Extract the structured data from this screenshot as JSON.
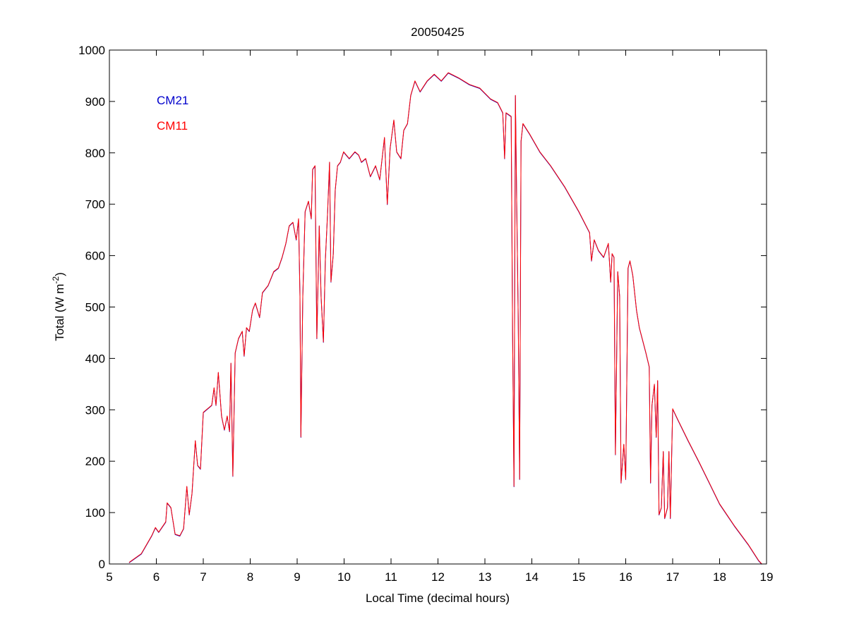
{
  "chart_data": {
    "type": "line",
    "title": "20050425",
    "xlabel": "Local Time (decimal hours)",
    "ylabel": "Total (W m",
    "ylabel_sup": "-2",
    "ylabel_end": ")",
    "xlim": [
      5,
      19
    ],
    "ylim": [
      0,
      1000
    ],
    "xticks": [
      5,
      6,
      7,
      8,
      9,
      10,
      11,
      12,
      13,
      14,
      15,
      16,
      17,
      18,
      19
    ],
    "yticks": [
      0,
      100,
      200,
      300,
      400,
      500,
      600,
      700,
      800,
      900,
      1000
    ],
    "grid": false,
    "legend_placement": "top-left",
    "x": [
      5.42,
      5.68,
      5.9,
      5.98,
      6.05,
      6.2,
      6.23,
      6.31,
      6.4,
      6.5,
      6.58,
      6.65,
      6.7,
      6.76,
      6.83,
      6.88,
      6.94,
      7.0,
      7.18,
      7.23,
      7.27,
      7.32,
      7.39,
      7.45,
      7.51,
      7.56,
      7.59,
      7.63,
      7.68,
      7.75,
      7.83,
      7.87,
      7.92,
      7.98,
      8.05,
      8.11,
      8.2,
      8.26,
      8.38,
      8.5,
      8.6,
      8.68,
      8.76,
      8.83,
      8.91,
      8.98,
      9.03,
      9.06,
      9.08,
      9.12,
      9.17,
      9.24,
      9.3,
      9.33,
      9.38,
      9.42,
      9.47,
      9.51,
      9.56,
      9.6,
      9.65,
      9.69,
      9.72,
      9.77,
      9.81,
      9.86,
      9.92,
      9.99,
      10.11,
      10.23,
      10.31,
      10.37,
      10.46,
      10.56,
      10.67,
      10.76,
      10.86,
      10.92,
      10.98,
      11.06,
      11.12,
      11.21,
      11.27,
      11.35,
      11.42,
      11.51,
      11.62,
      11.77,
      11.92,
      12.07,
      12.22,
      12.44,
      12.67,
      12.89,
      13.12,
      13.27,
      13.38,
      13.42,
      13.45,
      13.56,
      13.59,
      13.62,
      13.65,
      13.68,
      13.71,
      13.74,
      13.77,
      13.81,
      13.95,
      14.17,
      14.4,
      14.7,
      15.0,
      15.23,
      15.27,
      15.33,
      15.42,
      15.53,
      15.63,
      15.68,
      15.71,
      15.75,
      15.78,
      15.83,
      15.87,
      15.9,
      15.96,
      16.0,
      16.05,
      16.09,
      16.15,
      16.23,
      16.29,
      16.35,
      16.43,
      16.5,
      16.53,
      16.56,
      16.61,
      16.65,
      16.68,
      16.71,
      16.76,
      16.8,
      16.83,
      16.89,
      16.92,
      16.95,
      17.0,
      17.11,
      17.33,
      17.56,
      17.78,
      18.0,
      18.31,
      18.61,
      18.83,
      18.9
    ],
    "series": [
      {
        "name": "CM21",
        "color": "#0000cc",
        "values": [
          3,
          20,
          55,
          71,
          62,
          82,
          119,
          110,
          58,
          55,
          69,
          151,
          96,
          137,
          240,
          192,
          185,
          295,
          309,
          343,
          309,
          373,
          288,
          261,
          288,
          258,
          391,
          171,
          411,
          439,
          453,
          405,
          460,
          453,
          494,
          508,
          480,
          528,
          542,
          569,
          576,
          597,
          624,
          658,
          665,
          631,
          672,
          521,
          247,
          521,
          686,
          706,
          672,
          768,
          775,
          439,
          658,
          521,
          432,
          590,
          686,
          782,
          549,
          604,
          727,
          775,
          782,
          802,
          789,
          802,
          796,
          782,
          789,
          754,
          775,
          748,
          830,
          700,
          809,
          864,
          802,
          789,
          844,
          857,
          912,
          940,
          919,
          940,
          953,
          940,
          956,
          946,
          933,
          926,
          905,
          898,
          878,
          789,
          878,
          871,
          453,
          151,
          912,
          686,
          480,
          165,
          823,
          857,
          837,
          802,
          775,
          734,
          686,
          645,
          590,
          631,
          610,
          597,
          624,
          549,
          604,
          597,
          213,
          569,
          521,
          158,
          233,
          165,
          576,
          590,
          562,
          494,
          460,
          439,
          411,
          384,
          158,
          309,
          350,
          247,
          357,
          96,
          110,
          219,
          89,
          110,
          219,
          89,
          302,
          281,
          240,
          199,
          158,
          117,
          75,
          38,
          7,
          0
        ]
      },
      {
        "name": "CM11",
        "color": "#ff0000",
        "values": [
          3,
          20,
          55,
          71,
          62,
          82,
          119,
          110,
          58,
          55,
          69,
          151,
          96,
          137,
          240,
          192,
          185,
          295,
          309,
          343,
          309,
          373,
          288,
          261,
          288,
          258,
          391,
          171,
          411,
          439,
          453,
          405,
          460,
          453,
          494,
          508,
          480,
          528,
          542,
          569,
          576,
          597,
          624,
          658,
          665,
          631,
          672,
          521,
          247,
          521,
          686,
          706,
          672,
          768,
          775,
          439,
          658,
          521,
          432,
          590,
          686,
          782,
          549,
          604,
          727,
          775,
          782,
          802,
          789,
          802,
          796,
          782,
          789,
          754,
          775,
          748,
          830,
          700,
          809,
          864,
          802,
          789,
          844,
          857,
          912,
          940,
          919,
          940,
          953,
          940,
          956,
          946,
          933,
          926,
          905,
          898,
          878,
          789,
          878,
          871,
          453,
          151,
          912,
          686,
          480,
          165,
          823,
          857,
          837,
          802,
          775,
          734,
          686,
          645,
          590,
          631,
          610,
          597,
          624,
          549,
          604,
          597,
          213,
          569,
          521,
          158,
          233,
          165,
          576,
          590,
          562,
          494,
          460,
          439,
          411,
          384,
          158,
          309,
          350,
          247,
          357,
          96,
          110,
          219,
          89,
          110,
          219,
          89,
          302,
          281,
          240,
          199,
          158,
          117,
          75,
          38,
          7,
          0
        ]
      }
    ]
  }
}
